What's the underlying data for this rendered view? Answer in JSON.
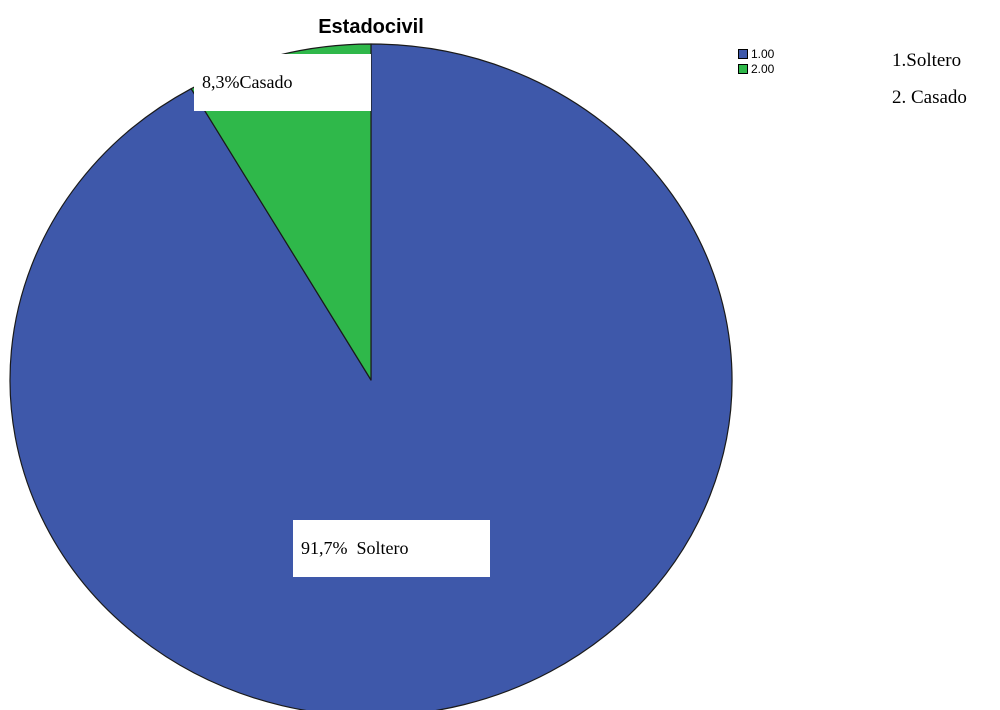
{
  "chart_data": {
    "type": "pie",
    "title": "Estadocivil",
    "slices": [
      {
        "category": "1.00",
        "value": 91.7,
        "label": "91,7%  Soltero",
        "color": "#3e58aa"
      },
      {
        "category": "2.00",
        "value": 8.3,
        "label": "8,3%Casado",
        "color": "#2fb84a"
      }
    ],
    "legend": {
      "position": "top-right",
      "items": [
        "1.00",
        "2.00"
      ]
    }
  },
  "notes": [
    "1.Soltero",
    "2. Casado"
  ]
}
